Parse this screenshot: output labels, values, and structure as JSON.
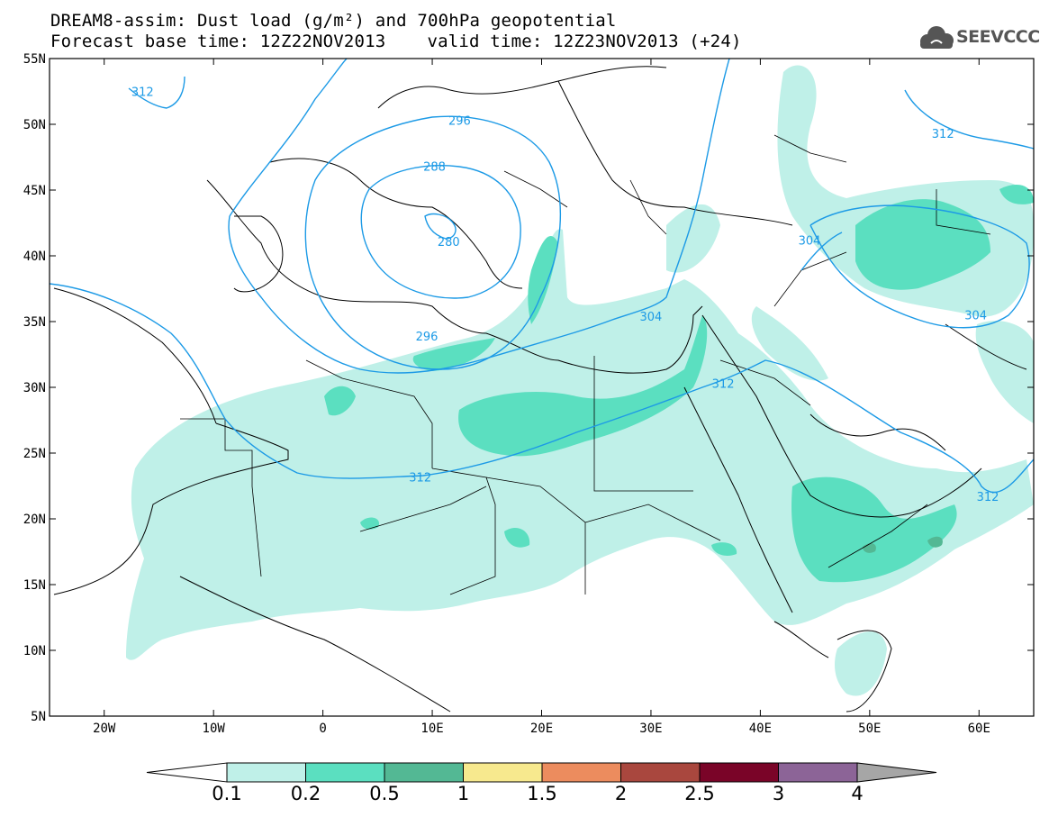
{
  "title": {
    "line1": "DREAM8-assim: Dust load (g/m²) and 700hPa geopotential",
    "base_time": "Forecast base time: 12Z22NOV2013",
    "valid_time": "valid time: 12Z23NOV2013 (+24)"
  },
  "logo": {
    "text": "SEEVCCC",
    "icon": "cloud-icon"
  },
  "map": {
    "lat_labels": [
      {
        "lat": 55,
        "label": "55N"
      },
      {
        "lat": 50,
        "label": "50N"
      },
      {
        "lat": 45,
        "label": "45N"
      },
      {
        "lat": 40,
        "label": "40N"
      },
      {
        "lat": 35,
        "label": "35N"
      },
      {
        "lat": 30,
        "label": "30N"
      },
      {
        "lat": 25,
        "label": "25N"
      },
      {
        "lat": 20,
        "label": "20N"
      },
      {
        "lat": 15,
        "label": "15N"
      },
      {
        "lat": 10,
        "label": "10N"
      },
      {
        "lat": 5,
        "label": "5N"
      }
    ],
    "lon_labels": [
      {
        "lon": -20,
        "label": "20W"
      },
      {
        "lon": -10,
        "label": "10W"
      },
      {
        "lon": 0,
        "label": "0"
      },
      {
        "lon": 10,
        "label": "10E"
      },
      {
        "lon": 20,
        "label": "20E"
      },
      {
        "lon": 30,
        "label": "30E"
      },
      {
        "lon": 40,
        "label": "40E"
      },
      {
        "lon": 50,
        "label": "50E"
      },
      {
        "lon": 60,
        "label": "60E"
      }
    ],
    "contour_labels": [
      {
        "text": "312",
        "lon": -16.5,
        "lat": 52.5
      },
      {
        "text": "296",
        "lon": 12.5,
        "lat": 50.3
      },
      {
        "text": "288",
        "lon": 10.2,
        "lat": 46.8
      },
      {
        "text": "280",
        "lon": 11.5,
        "lat": 41.1
      },
      {
        "text": "296",
        "lon": 9.5,
        "lat": 33.9
      },
      {
        "text": "304",
        "lon": 30.0,
        "lat": 35.4
      },
      {
        "text": "312",
        "lon": 36.6,
        "lat": 30.3
      },
      {
        "text": "312",
        "lon": 8.9,
        "lat": 23.2
      },
      {
        "text": "304",
        "lon": 44.5,
        "lat": 41.2
      },
      {
        "text": "312",
        "lon": 56.7,
        "lat": 49.3
      },
      {
        "text": "304",
        "lon": 59.7,
        "lat": 35.5
      },
      {
        "text": "312",
        "lon": 60.8,
        "lat": 21.7
      }
    ],
    "colors": {
      "background": "#ffffff",
      "contour": "#1c9ae6",
      "contour_label": "#1c9ae6",
      "coastline": "#000000",
      "dust_0_1": "#bff0e8",
      "dust_0_2": "#5bdfc0",
      "dust_0_5": "#53b894"
    }
  },
  "colorbar": {
    "tick_labels": [
      "0.1",
      "0.2",
      "0.5",
      "1",
      "1.5",
      "2",
      "2.5",
      "3",
      "4"
    ],
    "colors": [
      "#ffffff",
      "#bff0e8",
      "#5bdfc0",
      "#53b894",
      "#f7e98e",
      "#ec8c5e",
      "#a9473e",
      "#7a0428",
      "#8c6497",
      "#a6a6a6"
    ]
  }
}
